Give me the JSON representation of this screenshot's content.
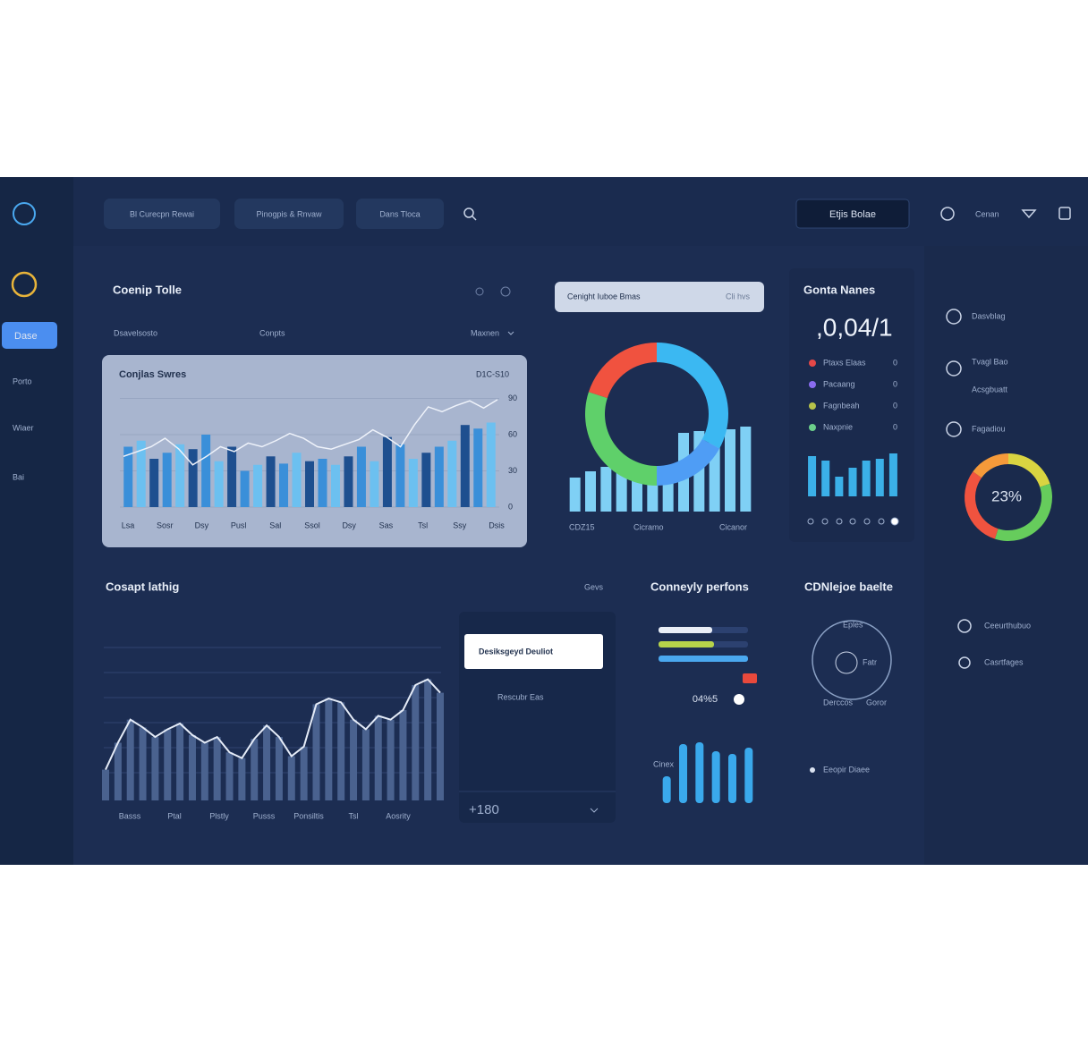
{
  "sidebar": {
    "items": [
      "Dase",
      "Porto",
      "Wiaer",
      "Bai"
    ]
  },
  "topbar": {
    "tabs": [
      "Bl Curecpn Rewai",
      "Pinogpis & Rnvaw",
      "Dans Tloca"
    ],
    "button": "Etjis Bolae",
    "user": "Cenan"
  },
  "overview": {
    "title": "Coenip Tolle",
    "filters": [
      "Dsavelsosto",
      "Conpts"
    ],
    "dropdown": "Maxnen",
    "chart": {
      "title": "Conjlas Swres",
      "badge": "D1C-S10",
      "ylim": [
        0,
        100
      ],
      "yticks": [
        0,
        30,
        60,
        90
      ],
      "x_labels": [
        "Lsa",
        "Sosr",
        "Dsy",
        "Pusl",
        "Sal",
        "Ssol",
        "Dsy",
        "Sas",
        "Tsl",
        "Ssy",
        "Dsis"
      ],
      "colors": [
        "#3a8fd9",
        "#6cc0f0",
        "#1e4f8f"
      ],
      "bars": [
        50,
        55,
        40,
        45,
        52,
        48,
        60,
        38,
        50,
        30,
        35,
        42,
        36,
        45,
        38,
        40,
        35,
        42,
        50,
        38,
        58,
        52,
        40,
        45,
        50,
        55,
        68,
        65,
        70
      ],
      "line": [
        42,
        46,
        50,
        57,
        48,
        35,
        42,
        50,
        46,
        53,
        50,
        55,
        61,
        57,
        50,
        48,
        52,
        56,
        64,
        58,
        50,
        68,
        83,
        79,
        84,
        88,
        82,
        89
      ]
    }
  },
  "donut_panel": {
    "input": "Cenight Iuboe Bmas",
    "input_hint": "Cli hvs",
    "segments": [
      {
        "value": 33,
        "color": "#3bb8f2"
      },
      {
        "value": 17,
        "color": "#4f9df5"
      },
      {
        "value": 30,
        "color": "#5fd06a"
      },
      {
        "value": 20,
        "color": "#f0523f"
      }
    ],
    "ylim": [
      0,
      100
    ],
    "bars": [
      38,
      45,
      50,
      48,
      42,
      40,
      40,
      88,
      90,
      85,
      92,
      95
    ],
    "x_labels": [
      "CDZ15",
      "Cicramo",
      "Cicanor"
    ]
  },
  "stats": {
    "title": "Gonta Nanes",
    "value": ",0,04/1",
    "legend": [
      {
        "label": "Ptaxs Elaas",
        "color": "#e54848",
        "value": 0
      },
      {
        "label": "Pacaang",
        "color": "#8a6cf0",
        "value": 0
      },
      {
        "label": "Fagnbeah",
        "color": "#b6c24a",
        "value": 0
      },
      {
        "label": "Naxpnie",
        "color": "#6ccf8a",
        "value": 0
      }
    ],
    "ylim": [
      0,
      50
    ],
    "bars": [
      45,
      40,
      22,
      32,
      40,
      42,
      48
    ]
  },
  "right_panel": {
    "items": [
      "Dasvblag",
      "Tvagl Bao",
      "Acsgbuatt",
      "Fagadiou"
    ],
    "donut": {
      "label": "23%",
      "segments": [
        {
          "value": 20,
          "color": "#d9d441"
        },
        {
          "value": 35,
          "color": "#66cc5c"
        },
        {
          "value": 30,
          "color": "#f0533f"
        },
        {
          "value": 15,
          "color": "#f59a3a"
        }
      ]
    },
    "lower_items": [
      "Ceeurthubuo",
      "Casrtfages"
    ]
  },
  "trend": {
    "title": "Cosapt lathig",
    "hint": "Gevs",
    "ylim": [
      0,
      100
    ],
    "values": [
      16,
      30,
      42,
      38,
      33,
      37,
      40,
      34,
      30,
      33,
      25,
      22,
      32,
      39,
      33,
      23,
      28,
      50,
      53,
      51,
      42,
      37,
      44,
      42,
      47,
      60,
      63,
      56
    ],
    "x_labels": [
      "Basss",
      "Ptal",
      "Plstly",
      "Pusss",
      "Ponsiltis",
      "Tsl",
      "Aosrity"
    ]
  },
  "list_card": {
    "selected": "Desiksgeyd Deuliot",
    "item": "Rescubr Eas",
    "footer": "+180"
  },
  "performance": {
    "title": "Conneyly perfons",
    "progress": [
      {
        "value": 60,
        "color": "#e9eef6"
      },
      {
        "value": 62,
        "color": "#b6d34a"
      },
      {
        "value": 100,
        "color": "#4aa8ef"
      }
    ],
    "progress_max": 100,
    "stat": "04%5",
    "bar_label": "Cinex",
    "ylim": [
      0,
      80
    ],
    "bars": [
      30,
      66,
      68,
      58,
      55,
      62
    ]
  },
  "gauge_panel": {
    "title": "CDNlejoe baelte",
    "gauge_label": "Eples",
    "inner": "Fatr",
    "labels": [
      "Derccos",
      "Goror"
    ],
    "note": "Eeopir Diaee"
  }
}
